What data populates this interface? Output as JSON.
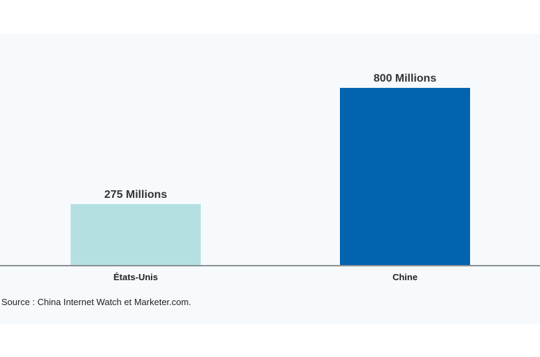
{
  "chart_data": {
    "type": "bar",
    "categories": [
      "États-Unis",
      "Chine"
    ],
    "values": [
      275,
      800
    ],
    "value_labels": [
      "275 Millions",
      "800 Millions"
    ],
    "colors": [
      "#b5e0e1",
      "#0264af"
    ],
    "ylim": [
      0,
      800
    ],
    "title": "",
    "xlabel": "",
    "ylabel": "",
    "grid": false,
    "source": "Source : China Internet Watch et  Marketer.com."
  }
}
